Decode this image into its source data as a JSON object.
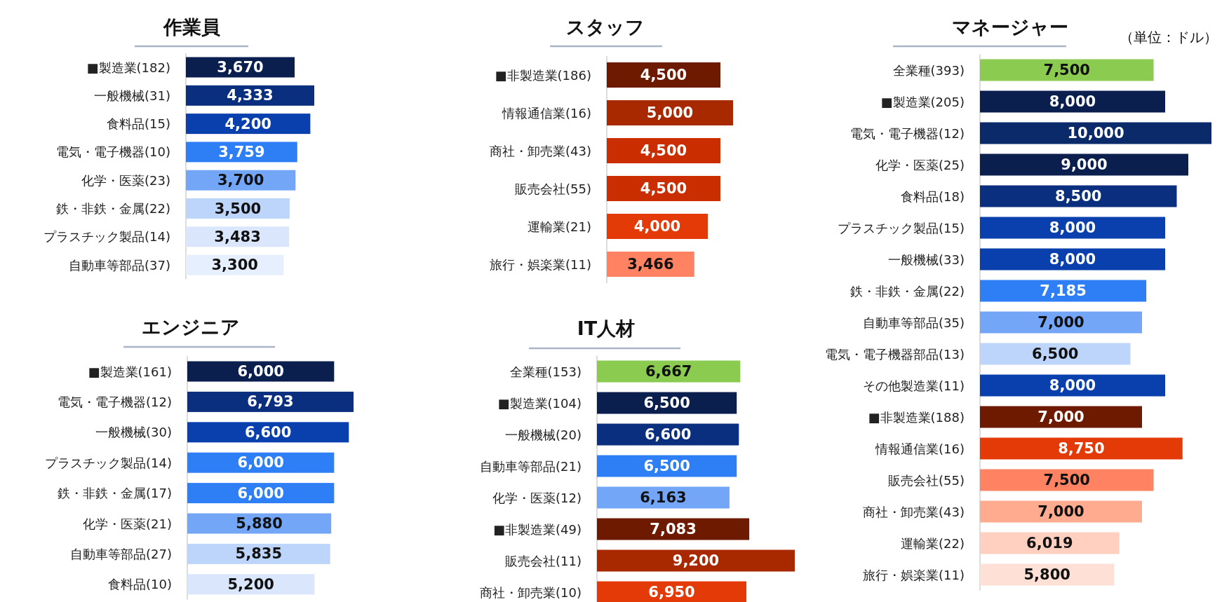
{
  "chart_data": [
    {
      "type": "bar",
      "orientation": "horizontal",
      "title": "作業員",
      "value_labels": [
        "3,670",
        "4,333",
        "4,200",
        "3,759",
        "3,700",
        "3,500",
        "3,483",
        "3,300"
      ],
      "categories": [
        "■製造業(182)",
        "一般機械(31)",
        "食料品(15)",
        "電気・電子機器(10)",
        "化学・医薬(23)",
        "鉄・非鉄・金属(22)",
        "プラスチック製品(14)",
        "自動車等部品(37)"
      ],
      "values": [
        3670,
        4333,
        4200,
        3759,
        3700,
        3500,
        3483,
        3300
      ],
      "colors": [
        "#0b1f4f",
        "#0b2f7f",
        "#0a3fae",
        "#2e7ff5",
        "#74a6f7",
        "#bdd4fb",
        "#d9e6fc",
        "#e6effd"
      ]
    },
    {
      "type": "bar",
      "orientation": "horizontal",
      "title": "エンジニア",
      "value_labels": [
        "6,000",
        "6,793",
        "6,600",
        "6,000",
        "6,000",
        "5,880",
        "5,835",
        "5,200"
      ],
      "categories": [
        "■製造業(161)",
        "電気・電子機器(12)",
        "一般機械(30)",
        "プラスチック製品(14)",
        "鉄・非鉄・金属(17)",
        "化学・医薬(21)",
        "自動車等部品(27)",
        "食料品(10)"
      ],
      "values": [
        6000,
        6793,
        6600,
        6000,
        6000,
        5880,
        5835,
        5200
      ],
      "colors": [
        "#0b1f4f",
        "#0b2f7f",
        "#0a3fae",
        "#2e7ff5",
        "#2e7ff5",
        "#74a6f7",
        "#bdd4fb",
        "#d9e6fc"
      ]
    },
    {
      "type": "bar",
      "orientation": "horizontal",
      "title": "スタッフ",
      "value_labels": [
        "4,500",
        "5,000",
        "4,500",
        "4,500",
        "4,000",
        "3,466"
      ],
      "categories": [
        "■非製造業(186)",
        "情報通信業(16)",
        "商社・卸売業(43)",
        "販売会社(55)",
        "運輸業(21)",
        "旅行・娯楽業(11)"
      ],
      "values": [
        4500,
        5000,
        4500,
        4500,
        4000,
        3466
      ],
      "colors": [
        "#6e1a00",
        "#a82800",
        "#c92d00",
        "#c92d00",
        "#e43a08",
        "#ff8262"
      ]
    },
    {
      "type": "bar",
      "orientation": "horizontal",
      "title": "IT人材",
      "value_labels": [
        "6,667",
        "6,500",
        "6,600",
        "6,500",
        "6,163",
        "7,083",
        "9,200",
        "6,950"
      ],
      "categories": [
        "全業種(153)",
        "■製造業(104)",
        "一般機械(20)",
        "自動車等部品(21)",
        "化学・医薬(12)",
        "■非製造業(49)",
        "販売会社(11)",
        "商社・卸売業(10)"
      ],
      "values": [
        6667,
        6500,
        6600,
        6500,
        6163,
        7083,
        9200,
        6950
      ],
      "colors": [
        "#8acb50",
        "#0b1f4f",
        "#0b2f7f",
        "#2e7ff5",
        "#74a6f7",
        "#6e1a00",
        "#a82800",
        "#e43a08"
      ]
    },
    {
      "type": "bar",
      "orientation": "horizontal",
      "title": "マネージャー",
      "value_labels": [
        "7,500",
        "8,000",
        "10,000",
        "9,000",
        "8,500",
        "8,000",
        "8,000",
        "7,185",
        "7,000",
        "6,500",
        "8,000",
        "7,000",
        "8,750",
        "7,500",
        "7,000",
        "6,019",
        "5,800"
      ],
      "annotations": [
        "（単位：ドル）"
      ],
      "categories": [
        "全業種(393)",
        "■製造業(205)",
        "電気・電子機器(12)",
        "化学・医薬(25)",
        "食料品(18)",
        "プラスチック製品(15)",
        "一般機械(33)",
        "鉄・非鉄・金属(22)",
        "自動車等部品(35)",
        "電気・電子機器部品(13)",
        "その他製造業(11)",
        "■非製造業(188)",
        "情報通信業(16)",
        "販売会社(55)",
        "商社・卸売業(43)",
        "運輸業(22)",
        "旅行・娯楽業(11)"
      ],
      "values": [
        7500,
        8000,
        10000,
        9000,
        8500,
        8000,
        8000,
        7185,
        7000,
        6500,
        8000,
        7000,
        8750,
        7500,
        7000,
        6019,
        5800
      ],
      "colors": [
        "#8acb50",
        "#0b1f4f",
        "#0b2a6a",
        "#0b1f4f",
        "#0b2f7f",
        "#0a3fae",
        "#0a3fae",
        "#2e7ff5",
        "#74a6f7",
        "#bdd4fb",
        "#0a3fae",
        "#6e1a00",
        "#e43a08",
        "#ff8262",
        "#ffab90",
        "#ffd0c0",
        "#ffe0d6"
      ]
    }
  ]
}
